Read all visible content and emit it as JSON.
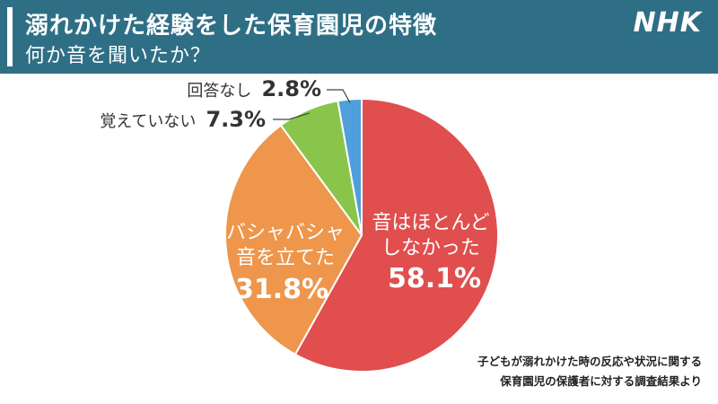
{
  "header": {
    "title": "溺れかけた経験をした保育園児の特徴",
    "subtitle": "何か音を聞いたか？",
    "brand": "NHK"
  },
  "colors": {
    "header_bg": "#2f6f86",
    "slice_0": "#e04e4e",
    "slice_1": "#ee964b",
    "slice_2": "#89c54b",
    "slice_3": "#4f9fda"
  },
  "chart_data": {
    "type": "pie",
    "title": "何か音を聞いたか？",
    "unit": "%",
    "slices": [
      {
        "label_lines": [
          "音はほとんど",
          "しなかった"
        ],
        "value": 58.1,
        "value_text": "58.1%",
        "color": "#e04e4e"
      },
      {
        "label_lines": [
          "バシャバシャ",
          "音を立てた"
        ],
        "value": 31.8,
        "value_text": "31.8%",
        "color": "#ee964b"
      },
      {
        "label": "覚えていない",
        "value": 7.3,
        "value_text": "7.3%",
        "color": "#89c54b"
      },
      {
        "label": "回答なし",
        "value": 2.8,
        "value_text": "2.8%",
        "color": "#4f9fda"
      }
    ]
  },
  "source": {
    "line1": "子どもが溺れかけた時の反応や状況に関する",
    "line2": "保育園児の保護者に対する調査結果より"
  }
}
